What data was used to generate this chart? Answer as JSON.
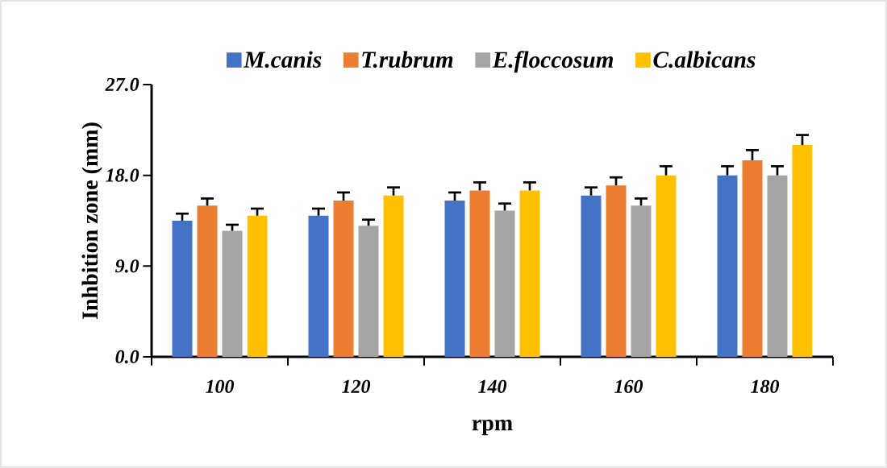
{
  "chart_data": {
    "type": "bar",
    "xlabel": "rpm",
    "ylabel": "Inhbition zone (mm)",
    "categories": [
      "100",
      "120",
      "140",
      "160",
      "180"
    ],
    "series": [
      {
        "name": "M.canis",
        "color": "#4472c4",
        "values": [
          13.5,
          14.0,
          15.5,
          16.0,
          18.0
        ],
        "errors": [
          0.7,
          0.7,
          0.8,
          0.8,
          0.9
        ]
      },
      {
        "name": "T.rubrum",
        "color": "#ed7d31",
        "values": [
          15.0,
          15.5,
          16.5,
          17.0,
          19.5
        ],
        "errors": [
          0.7,
          0.8,
          0.8,
          0.8,
          1.0
        ]
      },
      {
        "name": "E.floccosum",
        "color": "#a5a5a5",
        "values": [
          12.5,
          13.0,
          14.5,
          15.0,
          18.0
        ],
        "errors": [
          0.6,
          0.6,
          0.7,
          0.7,
          0.9
        ]
      },
      {
        "name": "C.albicans",
        "color": "#ffc000",
        "values": [
          14.0,
          16.0,
          16.5,
          18.0,
          21.0
        ],
        "errors": [
          0.7,
          0.8,
          0.8,
          0.9,
          1.0
        ]
      }
    ],
    "ylim": [
      0,
      27
    ],
    "yticks": [
      {
        "value": 0,
        "label": "0.0"
      },
      {
        "value": 9,
        "label": "9.0"
      },
      {
        "value": 18,
        "label": "18.0"
      },
      {
        "value": 27,
        "label": "27.0"
      }
    ],
    "legend": "top",
    "grid": false
  }
}
